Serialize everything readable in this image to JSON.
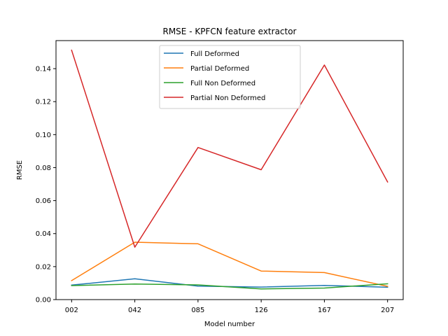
{
  "chart_data": {
    "type": "line",
    "title": "RMSE - KPFCN feature extractor",
    "xlabel": "Model number",
    "ylabel": "RMSE",
    "categories": [
      "002",
      "042",
      "085",
      "126",
      "167",
      "207"
    ],
    "ylim": [
      0.0,
      0.157
    ],
    "yticks": [
      0.0,
      0.02,
      0.04,
      0.06,
      0.08,
      0.1,
      0.12,
      0.14
    ],
    "ytick_labels": [
      "0.00",
      "0.02",
      "0.04",
      "0.06",
      "0.08",
      "0.10",
      "0.12",
      "0.14"
    ],
    "grid": false,
    "legend_position": "upper-center",
    "series": [
      {
        "name": "Full Deformed",
        "color": "#1f77b4",
        "values": [
          0.0088,
          0.0126,
          0.0082,
          0.0076,
          0.0086,
          0.0075
        ]
      },
      {
        "name": "Partial Deformed",
        "color": "#ff7f0e",
        "values": [
          0.0115,
          0.0348,
          0.0338,
          0.0173,
          0.0164,
          0.008
        ]
      },
      {
        "name": "Full Non Deformed",
        "color": "#2ca02c",
        "values": [
          0.0085,
          0.0094,
          0.0089,
          0.0065,
          0.007,
          0.0096
        ]
      },
      {
        "name": "Partial Non Deformed",
        "color": "#d62728",
        "values": [
          0.1512,
          0.0318,
          0.0922,
          0.0787,
          0.1422,
          0.0713
        ]
      }
    ]
  }
}
